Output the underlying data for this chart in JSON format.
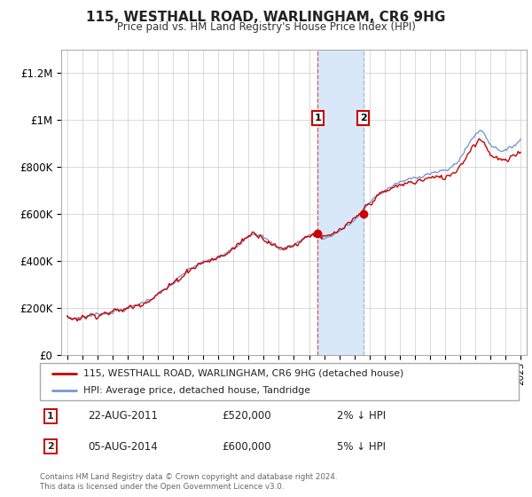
{
  "title": "115, WESTHALL ROAD, WARLINGHAM, CR6 9HG",
  "subtitle": "Price paid vs. HM Land Registry's House Price Index (HPI)",
  "ylabel_ticks": [
    "£0",
    "£200K",
    "£400K",
    "£600K",
    "£800K",
    "£1M",
    "£1.2M"
  ],
  "ytick_values": [
    0,
    200000,
    400000,
    600000,
    800000,
    1000000,
    1200000
  ],
  "ylim": [
    0,
    1300000
  ],
  "sale1_year": 2011.62,
  "sale1_price": 520000,
  "sale1_date": "22-AUG-2011",
  "sale1_pct": "2%",
  "sale2_year": 2014.59,
  "sale2_price": 600000,
  "sale2_date": "05-AUG-2014",
  "sale2_pct": "5%",
  "legend_label_red": "115, WESTHALL ROAD, WARLINGHAM, CR6 9HG (detached house)",
  "legend_label_blue": "HPI: Average price, detached house, Tandridge",
  "footer": "Contains HM Land Registry data © Crown copyright and database right 2024.\nThis data is licensed under the Open Government Licence v3.0.",
  "line_color_red": "#cc0000",
  "line_color_blue": "#7799cc",
  "shade_color": "#d8e8f8",
  "background_color": "#ffffff",
  "grid_color": "#cccccc",
  "label_box_color": "#cc0000",
  "xlim_left": 1994.6,
  "xlim_right": 2025.4
}
